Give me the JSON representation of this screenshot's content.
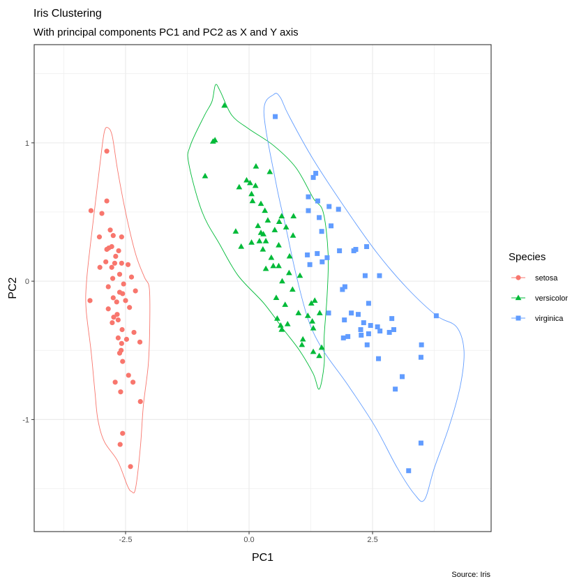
{
  "chart_data": {
    "type": "scatter",
    "title": "Iris Clustering",
    "subtitle": "With principal components PC1 and PC2 as X and Y axis",
    "xlabel": "PC1",
    "ylabel": "PC2",
    "caption": "Source: Iris",
    "xlim": [
      -4.35,
      4.9
    ],
    "ylim": [
      -1.81,
      1.71
    ],
    "x_ticks": [
      -2.5,
      0.0,
      2.5
    ],
    "x_tick_labels": [
      "-2.5",
      "0.0",
      "2.5"
    ],
    "y_ticks": [
      -1,
      0,
      1
    ],
    "y_tick_labels": [
      "-1",
      "0",
      "1"
    ],
    "x_minor_ticks": [
      -3.75,
      -1.25,
      1.25,
      3.75
    ],
    "y_minor_ticks": [
      -1.5,
      -0.5,
      0.5,
      1.5
    ],
    "grid": true,
    "legend": {
      "title": "Species",
      "placement": "right"
    },
    "series": [
      {
        "name": "setosa",
        "color": "#F8766D",
        "shape": "circle",
        "points": [
          [
            -2.88,
            0.94
          ],
          [
            -2.88,
            0.58
          ],
          [
            -3.2,
            0.51
          ],
          [
            -2.98,
            0.49
          ],
          [
            -2.81,
            0.37
          ],
          [
            -2.75,
            0.33
          ],
          [
            -3.03,
            0.32
          ],
          [
            -2.58,
            0.32
          ],
          [
            -2.84,
            0.24
          ],
          [
            -2.88,
            0.23
          ],
          [
            -2.78,
            0.25
          ],
          [
            -2.64,
            0.22
          ],
          [
            -2.7,
            0.18
          ],
          [
            -2.9,
            0.14
          ],
          [
            -2.72,
            0.13
          ],
          [
            -2.58,
            0.13
          ],
          [
            -2.45,
            0.12
          ],
          [
            -3.02,
            0.1
          ],
          [
            -2.78,
            0.1
          ],
          [
            -2.62,
            0.05
          ],
          [
            -2.38,
            0.03
          ],
          [
            -2.76,
            0.02
          ],
          [
            -2.54,
            -0.02
          ],
          [
            -2.85,
            -0.04
          ],
          [
            -2.62,
            -0.08
          ],
          [
            -2.3,
            -0.07
          ],
          [
            -2.56,
            -0.09
          ],
          [
            -2.75,
            -0.12
          ],
          [
            -3.22,
            -0.14
          ],
          [
            -2.68,
            -0.15
          ],
          [
            -2.5,
            -0.14
          ],
          [
            -2.42,
            -0.19
          ],
          [
            -2.85,
            -0.2
          ],
          [
            -2.67,
            -0.24
          ],
          [
            -2.74,
            -0.26
          ],
          [
            -2.65,
            -0.28
          ],
          [
            -2.77,
            -0.3
          ],
          [
            -2.57,
            -0.35
          ],
          [
            -2.33,
            -0.37
          ],
          [
            -2.65,
            -0.41
          ],
          [
            -2.48,
            -0.42
          ],
          [
            -2.58,
            -0.45
          ],
          [
            -2.21,
            -0.44
          ],
          [
            -2.59,
            -0.5
          ],
          [
            -2.62,
            -0.52
          ],
          [
            -2.56,
            -0.58
          ],
          [
            -2.44,
            -0.68
          ],
          [
            -2.71,
            -0.73
          ],
          [
            -2.35,
            -0.73
          ],
          [
            -2.6,
            -0.8
          ],
          [
            -2.2,
            -0.87
          ],
          [
            -2.56,
            -1.1
          ],
          [
            -2.61,
            -1.18
          ],
          [
            -2.4,
            -1.34
          ]
        ],
        "ellipse": [
          [
            -2.86,
            1.11
          ],
          [
            -2.77,
            1.05
          ],
          [
            -2.66,
            0.8
          ],
          [
            -2.5,
            0.5
          ],
          [
            -2.3,
            0.2
          ],
          [
            -2.12,
            0.03
          ],
          [
            -2.02,
            -0.05
          ],
          [
            -2.01,
            -0.3
          ],
          [
            -2.04,
            -0.6
          ],
          [
            -2.14,
            -0.9
          ],
          [
            -2.2,
            -1.2
          ],
          [
            -2.3,
            -1.5
          ],
          [
            -2.38,
            -1.52
          ],
          [
            -2.46,
            -1.48
          ],
          [
            -2.66,
            -1.3
          ],
          [
            -2.93,
            -1.16
          ],
          [
            -3.06,
            -1.0
          ],
          [
            -3.12,
            -0.8
          ],
          [
            -3.2,
            -0.5
          ],
          [
            -3.3,
            -0.2
          ],
          [
            -3.29,
            0.0
          ],
          [
            -3.2,
            0.3
          ],
          [
            -3.1,
            0.6
          ],
          [
            -3.0,
            0.9
          ],
          [
            -2.93,
            1.08
          ],
          [
            -2.86,
            1.11
          ]
        ]
      },
      {
        "name": "versicolor",
        "color": "#00BA38",
        "shape": "triangle",
        "points": [
          [
            -0.5,
            1.27
          ],
          [
            -0.73,
            1.01
          ],
          [
            -0.69,
            1.02
          ],
          [
            -0.89,
            0.76
          ],
          [
            0.14,
            0.83
          ],
          [
            0.42,
            0.79
          ],
          [
            0.02,
            0.71
          ],
          [
            -0.05,
            0.73
          ],
          [
            0.13,
            0.69
          ],
          [
            -0.2,
            0.68
          ],
          [
            0.05,
            0.63
          ],
          [
            0.07,
            0.58
          ],
          [
            0.24,
            0.56
          ],
          [
            0.32,
            0.51
          ],
          [
            0.66,
            0.47
          ],
          [
            0.9,
            0.47
          ],
          [
            0.38,
            0.44
          ],
          [
            0.61,
            0.43
          ],
          [
            0.18,
            0.4
          ],
          [
            0.24,
            0.35
          ],
          [
            0.29,
            0.34
          ],
          [
            0.52,
            0.37
          ],
          [
            0.75,
            0.39
          ],
          [
            0.89,
            0.33
          ],
          [
            -0.27,
            0.36
          ],
          [
            0.34,
            0.29
          ],
          [
            0.05,
            0.28
          ],
          [
            0.21,
            0.29
          ],
          [
            0.6,
            0.26
          ],
          [
            -0.16,
            0.25
          ],
          [
            0.28,
            0.23
          ],
          [
            0.45,
            0.17
          ],
          [
            0.6,
            0.11
          ],
          [
            0.82,
            0.18
          ],
          [
            0.49,
            0.11
          ],
          [
            0.34,
            0.09
          ],
          [
            0.81,
            0.06
          ],
          [
            1.03,
            0.04
          ],
          [
            0.88,
            -0.06
          ],
          [
            0.67,
            -0.0
          ],
          [
            0.55,
            -0.12
          ],
          [
            1.26,
            -0.16
          ],
          [
            0.73,
            -0.17
          ],
          [
            0.57,
            -0.27
          ],
          [
            1.33,
            -0.14
          ],
          [
            1.0,
            -0.23
          ],
          [
            1.19,
            -0.25
          ],
          [
            1.43,
            -0.23
          ],
          [
            1.28,
            -0.29
          ],
          [
            0.78,
            -0.31
          ],
          [
            0.64,
            -0.32
          ],
          [
            0.66,
            -0.35
          ],
          [
            1.09,
            -0.42
          ],
          [
            1.47,
            -0.48
          ],
          [
            1.3,
            -0.51
          ],
          [
            1.42,
            -0.54
          ],
          [
            1.07,
            -0.46
          ],
          [
            1.3,
            -0.34
          ]
        ],
        "ellipse": [
          [
            -0.68,
            1.42
          ],
          [
            -0.58,
            1.37
          ],
          [
            -0.35,
            1.2
          ],
          [
            0.0,
            1.1
          ],
          [
            0.5,
            0.98
          ],
          [
            0.95,
            0.82
          ],
          [
            1.3,
            0.6
          ],
          [
            1.5,
            0.5
          ],
          [
            1.6,
            0.2
          ],
          [
            1.58,
            -0.1
          ],
          [
            1.52,
            -0.4
          ],
          [
            1.52,
            -0.6
          ],
          [
            1.42,
            -0.78
          ],
          [
            1.3,
            -0.67
          ],
          [
            1.02,
            -0.5
          ],
          [
            0.7,
            -0.35
          ],
          [
            0.3,
            -0.16
          ],
          [
            -0.22,
            0.04
          ],
          [
            -0.6,
            0.27
          ],
          [
            -0.95,
            0.5
          ],
          [
            -1.22,
            0.85
          ],
          [
            -1.19,
            0.98
          ],
          [
            -0.9,
            1.2
          ],
          [
            -0.75,
            1.3
          ],
          [
            -0.68,
            1.42
          ]
        ]
      },
      {
        "name": "virginica",
        "color": "#619CFF",
        "shape": "square",
        "points": [
          [
            0.53,
            1.19
          ],
          [
            1.35,
            0.78
          ],
          [
            1.3,
            0.75
          ],
          [
            1.2,
            0.61
          ],
          [
            1.39,
            0.58
          ],
          [
            1.62,
            0.54
          ],
          [
            1.2,
            0.51
          ],
          [
            1.81,
            0.52
          ],
          [
            1.42,
            0.46
          ],
          [
            1.66,
            0.4
          ],
          [
            1.47,
            0.36
          ],
          [
            2.12,
            0.22
          ],
          [
            2.16,
            0.23
          ],
          [
            2.38,
            0.25
          ],
          [
            1.83,
            0.22
          ],
          [
            1.38,
            0.2
          ],
          [
            1.58,
            0.17
          ],
          [
            1.18,
            0.19
          ],
          [
            1.48,
            0.14
          ],
          [
            1.23,
            0.12
          ],
          [
            2.35,
            0.04
          ],
          [
            2.64,
            0.04
          ],
          [
            1.94,
            -0.04
          ],
          [
            1.89,
            -0.06
          ],
          [
            1.61,
            -0.23
          ],
          [
            2.21,
            -0.24
          ],
          [
            2.42,
            -0.16
          ],
          [
            1.93,
            -0.28
          ],
          [
            2.07,
            -0.23
          ],
          [
            2.89,
            -0.27
          ],
          [
            2.32,
            -0.3
          ],
          [
            2.65,
            -0.36
          ],
          [
            2.46,
            -0.32
          ],
          [
            2.6,
            -0.33
          ],
          [
            2.84,
            -0.37
          ],
          [
            2.93,
            -0.35
          ],
          [
            2.26,
            -0.35
          ],
          [
            2.42,
            -0.38
          ],
          [
            2.0,
            -0.4
          ],
          [
            1.91,
            -0.41
          ],
          [
            3.79,
            -0.25
          ],
          [
            2.27,
            -0.39
          ],
          [
            2.39,
            -0.46
          ],
          [
            2.62,
            -0.56
          ],
          [
            3.48,
            -0.55
          ],
          [
            3.49,
            -0.46
          ],
          [
            3.1,
            -0.69
          ],
          [
            2.96,
            -0.78
          ],
          [
            3.48,
            -1.17
          ],
          [
            3.23,
            -1.37
          ]
        ],
        "ellipse": [
          [
            0.5,
            1.35
          ],
          [
            0.63,
            1.33
          ],
          [
            0.8,
            1.2
          ],
          [
            1.3,
            0.88
          ],
          [
            2.0,
            0.5
          ],
          [
            2.6,
            0.2
          ],
          [
            3.2,
            -0.05
          ],
          [
            3.8,
            -0.25
          ],
          [
            4.2,
            -0.33
          ],
          [
            4.35,
            -0.5
          ],
          [
            4.28,
            -0.75
          ],
          [
            4.05,
            -1.05
          ],
          [
            3.75,
            -1.35
          ],
          [
            3.55,
            -1.58
          ],
          [
            3.35,
            -1.54
          ],
          [
            3.0,
            -1.35
          ],
          [
            2.55,
            -1.05
          ],
          [
            2.0,
            -0.75
          ],
          [
            1.5,
            -0.5
          ],
          [
            1.2,
            -0.28
          ],
          [
            0.95,
            0.05
          ],
          [
            0.75,
            0.38
          ],
          [
            0.55,
            0.7
          ],
          [
            0.3,
            1.22
          ],
          [
            0.5,
            1.35
          ]
        ]
      }
    ]
  }
}
